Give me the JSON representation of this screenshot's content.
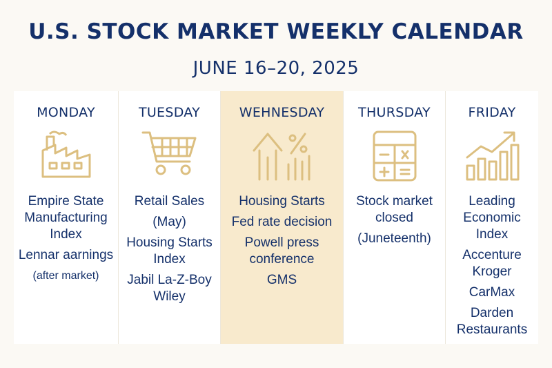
{
  "header": {
    "title": "U.S. STOCK MARKET WEEKLY CALENDAR",
    "subtitle": "JUNE 16–20, 2025"
  },
  "colors": {
    "navy": "#14306a",
    "gold": "#dcbf80",
    "highlight": "#f8eacd",
    "background": "#fbf9f4"
  },
  "days": [
    {
      "name": "MONDAY",
      "icon": "factory-icon",
      "items": [
        "Empire State Manufacturing Index",
        "Lennar aarnings",
        "(after market)"
      ]
    },
    {
      "name": "TUESDAY",
      "icon": "shopping-cart-icon",
      "items": [
        "Retail Sales",
        "(May)",
        "Housing Starts Index",
        "Jabil La-Z-Boy Wiley"
      ]
    },
    {
      "name": "WEHNESDAY",
      "icon": "house-percent-icon",
      "highlighted": true,
      "items": [
        "Housing Starts",
        "Fed rate decision",
        "Powell press conference",
        "GMS"
      ]
    },
    {
      "name": "THURSDAY",
      "icon": "calculator-icon",
      "items": [
        "Stock market closed",
        "(Juneteenth)"
      ]
    },
    {
      "name": "FRIDAY",
      "icon": "rising-chart-icon",
      "items": [
        "Leading Economic Index",
        "Accenture Kroger",
        "CarMax",
        "Darden Restaurants"
      ]
    }
  ]
}
